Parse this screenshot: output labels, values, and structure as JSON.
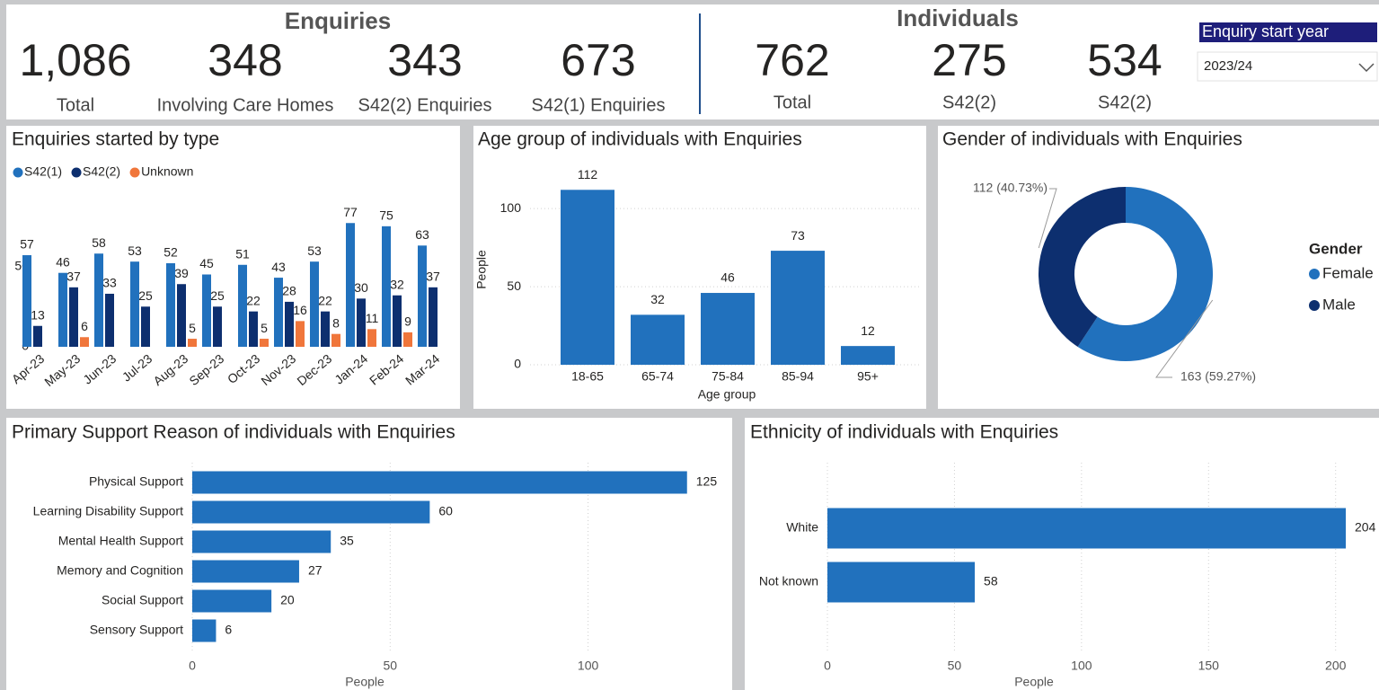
{
  "kpis": {
    "enquiries": {
      "title": "Enquiries",
      "items": [
        {
          "value": "1,086",
          "label": "Total"
        },
        {
          "value": "348",
          "label": "Involving Care Homes"
        },
        {
          "value": "343",
          "label": "S42(2) Enquiries"
        },
        {
          "value": "673",
          "label": "S42(1) Enquiries"
        }
      ]
    },
    "individuals": {
      "title": "Individuals",
      "items": [
        {
          "value": "762",
          "label": "Total"
        },
        {
          "value": "275",
          "label": "S42(2)"
        },
        {
          "value": "534",
          "label": "S42(2)"
        }
      ]
    }
  },
  "slicer": {
    "title": "Enquiry start year",
    "value": "2023/24"
  },
  "chart_data": [
    {
      "type": "grouped_bar",
      "title": "Enquiries started by type",
      "categories": [
        "Apr-23",
        "May-23",
        "Jun-23",
        "Jul-23",
        "Aug-23",
        "Sep-23",
        "Oct-23",
        "Nov-23",
        "Dec-23",
        "Jan-24",
        "Feb-24",
        "Mar-24"
      ],
      "series": [
        {
          "name": "S42(1)",
          "color": "#2171bd",
          "values": [
            57,
            46,
            58,
            53,
            52,
            45,
            51,
            43,
            53,
            77,
            75,
            63
          ]
        },
        {
          "name": "S42(2)",
          "color": "#0d2f6f",
          "values": [
            13,
            37,
            33,
            25,
            39,
            25,
            22,
            28,
            22,
            30,
            32,
            37
          ]
        },
        {
          "name": "Unknown",
          "color": "#f0763b",
          "values": [
            null,
            6,
            null,
            null,
            5,
            null,
            5,
            16,
            8,
            11,
            9,
            null
          ]
        }
      ],
      "ylim": [
        0,
        90
      ],
      "yticks": [
        0,
        50
      ],
      "legend": "top-left"
    },
    {
      "type": "bar",
      "title": "Age group of individuals with Enquiries",
      "categories": [
        "18-65",
        "65-74",
        "75-84",
        "85-94",
        "95+"
      ],
      "values": [
        112,
        32,
        46,
        73,
        12
      ],
      "color": "#2171bd",
      "ylim": [
        0,
        130
      ],
      "yticks": [
        0,
        50,
        100
      ],
      "x_label": "Age group",
      "y_label": "People",
      "grid": true
    },
    {
      "type": "donut",
      "title": "Gender of individuals with Enquiries",
      "legend_title": "Gender",
      "categories": [
        "Female",
        "Male"
      ],
      "values": [
        163,
        112
      ],
      "value_labels": [
        "163 (59.27%)",
        "112 (40.73%)"
      ],
      "colors": [
        "#2171bd",
        "#0d2f6f"
      ],
      "legend": "right"
    },
    {
      "type": "hbar",
      "title": "Primary Support Reason of individuals with Enquiries",
      "categories": [
        "Physical Support",
        "Learning Disability Support",
        "Mental Health Support",
        "Memory and Cognition",
        "Social Support",
        "Sensory Support"
      ],
      "values": [
        125,
        60,
        35,
        27,
        20,
        6
      ],
      "color": "#2171bd",
      "xlim": [
        0,
        133
      ],
      "xticks": [
        0,
        50,
        100
      ],
      "x_label": "People",
      "grid": true
    },
    {
      "type": "hbar",
      "title": "Ethnicity of individuals with Enquiries",
      "categories": [
        "White",
        "Not known"
      ],
      "values": [
        204,
        58
      ],
      "color": "#2171bd",
      "xlim": [
        0,
        210
      ],
      "xticks": [
        0,
        50,
        100,
        150,
        200
      ],
      "x_label": "People",
      "grid": true
    }
  ]
}
